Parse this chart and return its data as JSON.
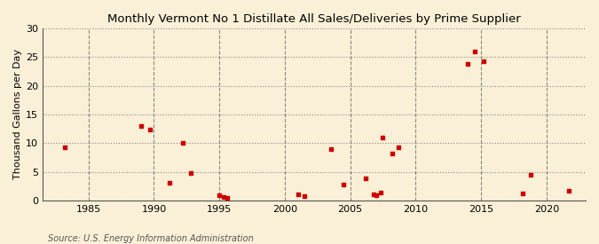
{
  "title": "Monthly Vermont No 1 Distillate All Sales/Deliveries by Prime Supplier",
  "ylabel": "Thousand Gallons per Day",
  "source": "Source: U.S. Energy Information Administration",
  "background_color": "#faf0d7",
  "plot_bg_color": "#faf0d7",
  "marker_color": "#cc0000",
  "marker_size": 12,
  "xlim": [
    1981.5,
    2023
  ],
  "ylim": [
    0,
    30
  ],
  "yticks": [
    0,
    5,
    10,
    15,
    20,
    25,
    30
  ],
  "xticks": [
    1985,
    1990,
    1995,
    2000,
    2005,
    2010,
    2015,
    2020
  ],
  "data_points": [
    [
      1983.2,
      9.2
    ],
    [
      1989.0,
      12.9
    ],
    [
      1989.7,
      12.4
    ],
    [
      1991.2,
      3.1
    ],
    [
      1992.2,
      10.0
    ],
    [
      1992.8,
      4.8
    ],
    [
      1995.0,
      0.9
    ],
    [
      1995.3,
      0.6
    ],
    [
      1995.6,
      0.4
    ],
    [
      2001.0,
      1.1
    ],
    [
      2001.5,
      0.8
    ],
    [
      2003.5,
      9.0
    ],
    [
      2004.5,
      2.8
    ],
    [
      2006.2,
      3.9
    ],
    [
      2006.8,
      1.1
    ],
    [
      2007.0,
      0.9
    ],
    [
      2007.3,
      1.4
    ],
    [
      2007.5,
      11.0
    ],
    [
      2008.2,
      8.2
    ],
    [
      2008.7,
      9.3
    ],
    [
      2014.0,
      23.8
    ],
    [
      2014.5,
      26.0
    ],
    [
      2015.2,
      24.3
    ],
    [
      2018.2,
      1.2
    ],
    [
      2018.8,
      4.4
    ],
    [
      2021.7,
      1.7
    ]
  ]
}
